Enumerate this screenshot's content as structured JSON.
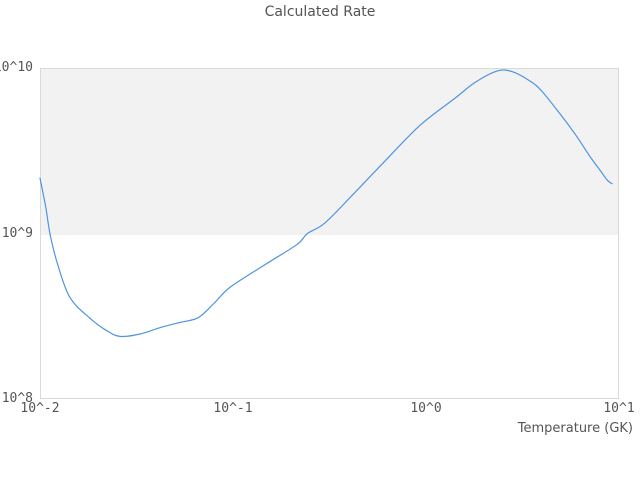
{
  "chart_data": {
    "type": "line",
    "title": "Calculated Rate",
    "xlabel": "Temperature (GK)",
    "ylabel": "",
    "x_scale": "log",
    "y_scale": "log",
    "xlim": [
      0.01,
      10
    ],
    "ylim": [
      100000000.0,
      10000000000.0
    ],
    "x_tick_values": [
      0.01,
      0.1,
      1,
      10
    ],
    "x_tick_labels": [
      "10^-2",
      "10^-1",
      "10^0",
      "10^1"
    ],
    "y_tick_values": [
      10000000000.0,
      1000000000.0,
      100000000.0
    ],
    "y_tick_labels": [
      "10^10",
      "10^9",
      "10^8"
    ],
    "grid": "off",
    "legend": "none",
    "shaded_band": {
      "from": 1000000000.0,
      "to": 10000000000.0,
      "color": "#f2f2f2",
      "edge_color": "#e3e3e3"
    },
    "series": [
      {
        "name": "calculated-rate",
        "color": "#4f94e0",
        "x": [
          0.01,
          0.0107,
          0.0113,
          0.0124,
          0.0143,
          0.018,
          0.022,
          0.026,
          0.033,
          0.042,
          0.053,
          0.066,
          0.08,
          0.097,
          0.147,
          0.215,
          0.243,
          0.3,
          0.43,
          0.6,
          0.93,
          1.42,
          1.8,
          2.34,
          2.8,
          3.48,
          4.0,
          5.0,
          6.0,
          7.1,
          8.0,
          8.7,
          9.2
        ],
        "y": [
          2160000000.0,
          1450000000.0,
          980000000.0,
          640000000.0,
          410000000.0,
          310000000.0,
          260000000.0,
          239000000.0,
          247000000.0,
          270000000.0,
          290000000.0,
          310000000.0,
          380000000.0,
          475000000.0,
          650000000.0,
          860000000.0,
          1000000000.0,
          1160000000.0,
          1780000000.0,
          2670000000.0,
          4500000000.0,
          6600000000.0,
          8200000000.0,
          9600000000.0,
          9500000000.0,
          8300000000.0,
          7200000000.0,
          5200000000.0,
          3900000000.0,
          2900000000.0,
          2400000000.0,
          2100000000.0,
          2000000000.0
        ]
      }
    ]
  },
  "colors": {
    "background": "#ffffff",
    "frame": "#d9d9d9",
    "text": "#555555"
  }
}
